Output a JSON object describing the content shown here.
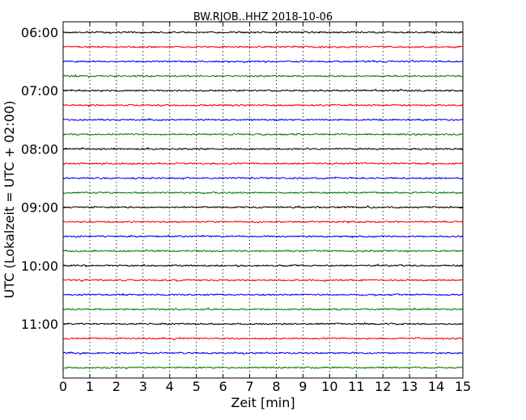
{
  "chart_data": {
    "type": "line",
    "title": "BW.RJOB..HHZ 2018-10-06",
    "xlabel": "Zeit  [min]",
    "ylabel": "UTC (Lokalzeit = UTC + 02:00)",
    "xlim": [
      0,
      15
    ],
    "x_ticks": [
      "0",
      "1",
      "2",
      "3",
      "4",
      "5",
      "6",
      "7",
      "8",
      "9",
      "10",
      "11",
      "12",
      "13",
      "14",
      "15"
    ],
    "y_ticks": [
      "06:00",
      "07:00",
      "08:00",
      "09:00",
      "10:00",
      "11:00"
    ],
    "grid": "vertical dotted at each minute",
    "trace_colors": [
      "#000000",
      "#ff0000",
      "#0000ff",
      "#007f00"
    ],
    "traces_start": [
      "06:00",
      "06:15",
      "06:30",
      "06:45",
      "07:00",
      "07:15",
      "07:30",
      "07:45",
      "08:00",
      "08:15",
      "08:30",
      "08:45",
      "09:00",
      "09:15",
      "09:30",
      "09:45",
      "10:00",
      "10:15",
      "10:30",
      "10:45",
      "11:00",
      "11:15",
      "11:30",
      "11:45"
    ]
  }
}
